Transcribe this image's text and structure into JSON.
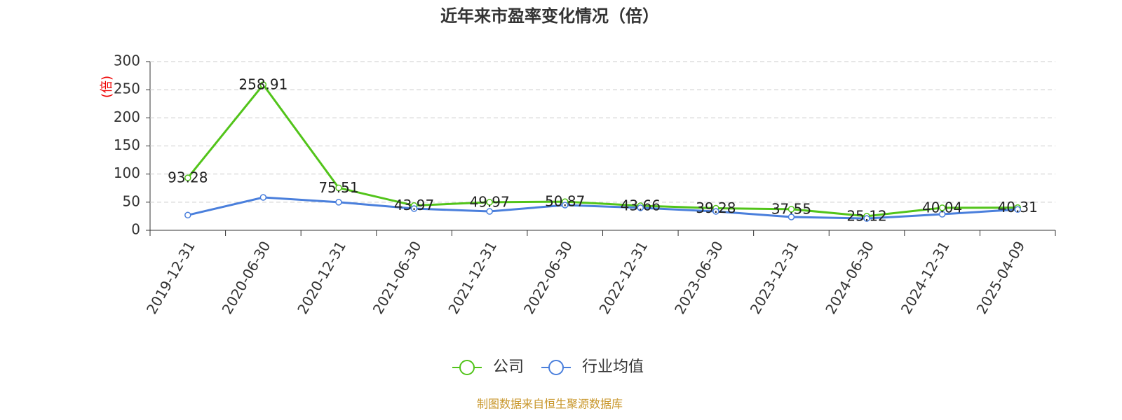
{
  "chart_data": {
    "type": "line",
    "title": "近年来市盈率变化情况（倍）",
    "y_label": "(倍)",
    "source": "制图数据来自恒生聚源数据库",
    "categories": [
      "2019-12-31",
      "2020-06-30",
      "2020-12-31",
      "2021-06-30",
      "2021-12-31",
      "2022-06-30",
      "2022-12-31",
      "2023-06-30",
      "2023-12-31",
      "2024-06-30",
      "2024-12-31",
      "2025-04-09"
    ],
    "series": [
      {
        "name": "公司",
        "color": "#52c41a",
        "values": [
          93.28,
          258.91,
          75.51,
          43.97,
          49.97,
          50.87,
          43.66,
          39.28,
          37.55,
          25.12,
          40.04,
          40.31
        ]
      },
      {
        "name": "行业均值",
        "color": "#4a7fdc",
        "values": [
          27,
          58.5,
          50,
          38.6,
          33.6,
          44.8,
          40,
          33.6,
          23.7,
          21,
          28.6,
          37
        ]
      }
    ],
    "ylim": [
      0,
      300
    ],
    "yticks": [
      0,
      50,
      100,
      150,
      200,
      250,
      300
    ],
    "grid": true
  }
}
